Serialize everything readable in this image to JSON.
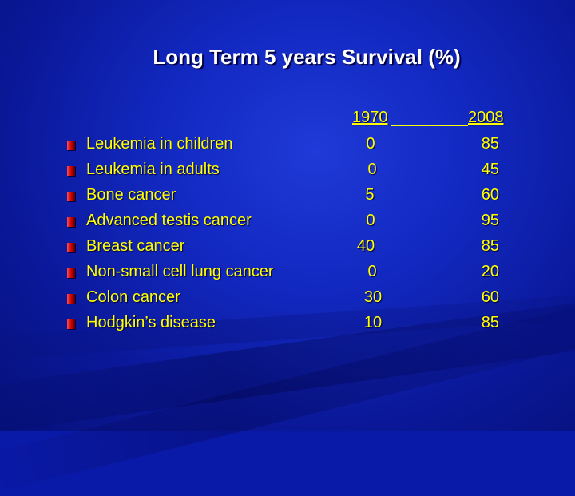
{
  "slide": {
    "title": "Long Term 5 years Survival (%)",
    "columns": [
      "1970",
      "2008"
    ],
    "rows": [
      {
        "label": "Leukemia in children",
        "v1970": "0",
        "v2008": "85"
      },
      {
        "label": "Leukemia in adults",
        "v1970": "0",
        "v2008": "45"
      },
      {
        "label": "Bone cancer",
        "v1970": "5",
        "v2008": "60"
      },
      {
        "label": "Advanced testis cancer",
        "v1970": "0",
        "v2008": "95"
      },
      {
        "label": "Breast cancer",
        "v1970": "40",
        "v2008": "85"
      },
      {
        "label": "Non-small cell lung cancer",
        "v1970": "0",
        "v2008": "20"
      },
      {
        "label": "Colon cancer",
        "v1970": "30",
        "v2008": "60"
      },
      {
        "label": "Hodgkin’s disease",
        "v1970": "10",
        "v2008": "85"
      }
    ],
    "colors": {
      "background": "#1228c0",
      "title": "#ffffff",
      "text": "#ffff00",
      "bullet": "#cc0000"
    }
  }
}
